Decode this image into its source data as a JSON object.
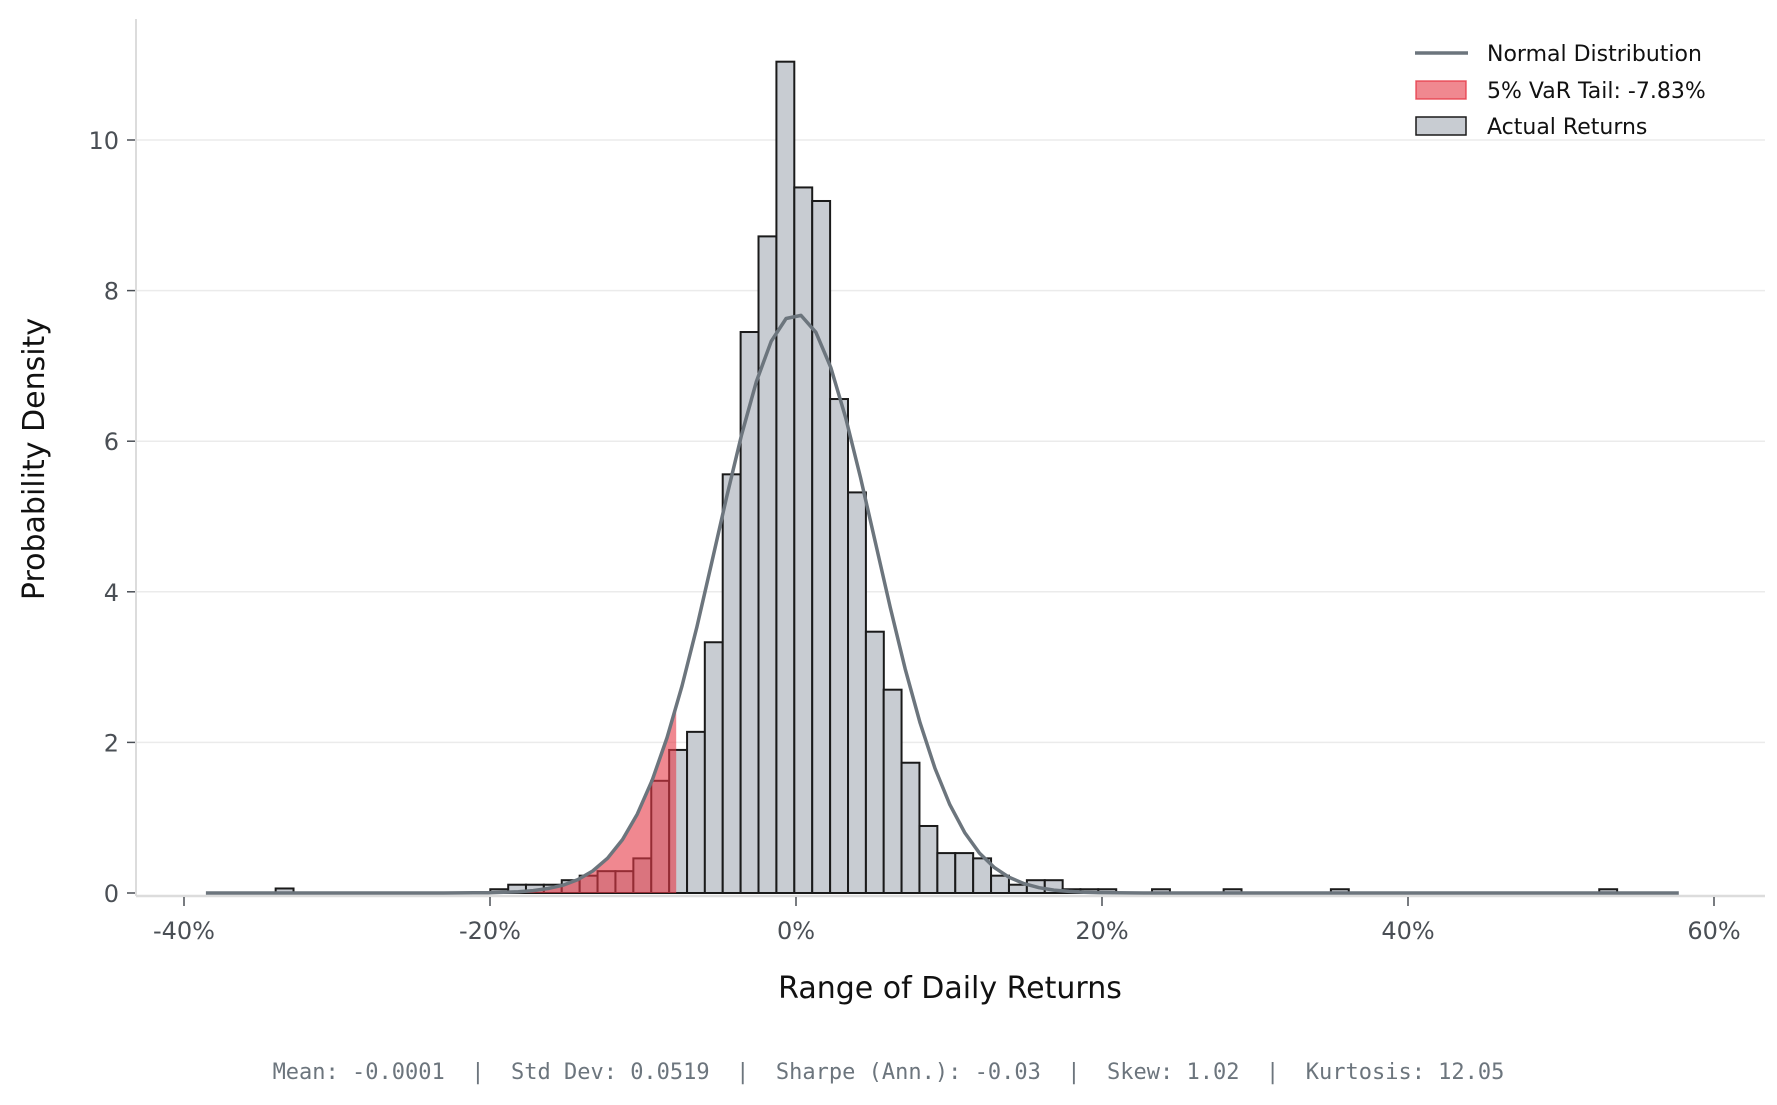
{
  "chart_data": {
    "type": "bar",
    "subtype": "histogram-with-normal-fit",
    "xlabel": "Range of Daily Returns",
    "ylabel": "Probability Density",
    "xlim": [
      -42,
      63
    ],
    "ylim": [
      0,
      11.4
    ],
    "x_ticks": [
      -40,
      -20,
      0,
      20,
      40,
      60
    ],
    "x_tick_labels": [
      "-40%",
      "-20%",
      "0%",
      "20%",
      "40%",
      "60%"
    ],
    "y_ticks": [
      0,
      2,
      4,
      6,
      8,
      10
    ],
    "y_tick_labels": [
      "0",
      "2",
      "4",
      "6",
      "8",
      "10"
    ],
    "grid": "horizontal",
    "legend_position": "top-right",
    "legend": [
      {
        "label": "Normal Distribution",
        "type": "line",
        "color": "#6c757d"
      },
      {
        "label": "5% VaR Tail: -7.83%",
        "type": "patch",
        "color": "#e63946"
      },
      {
        "label": "Actual Returns",
        "type": "patch",
        "color": "#c8ccd2"
      }
    ],
    "bin_width_pct": 1.169,
    "series": [
      {
        "name": "Actual Returns",
        "bins": [
          {
            "left": -34.01,
            "density": 0.06
          },
          {
            "left": -19.98,
            "density": 0.05
          },
          {
            "left": -18.81,
            "density": 0.11
          },
          {
            "left": -17.65,
            "density": 0.11
          },
          {
            "left": -16.48,
            "density": 0.11
          },
          {
            "left": -15.31,
            "density": 0.17
          },
          {
            "left": -14.14,
            "density": 0.23
          },
          {
            "left": -12.97,
            "density": 0.29
          },
          {
            "left": -11.8,
            "density": 0.29
          },
          {
            "left": -10.63,
            "density": 0.46
          },
          {
            "left": -9.46,
            "density": 1.49
          },
          {
            "left": -8.29,
            "density": 1.9
          },
          {
            "left": -7.12,
            "density": 2.14
          },
          {
            "left": -5.96,
            "density": 3.33
          },
          {
            "left": -4.79,
            "density": 5.56
          },
          {
            "left": -3.62,
            "density": 7.45
          },
          {
            "left": -2.45,
            "density": 8.72
          },
          {
            "left": -1.28,
            "density": 11.04
          },
          {
            "left": -0.11,
            "density": 9.37
          },
          {
            "left": 1.06,
            "density": 9.19
          },
          {
            "left": 2.23,
            "density": 6.56
          },
          {
            "left": 3.4,
            "density": 5.32
          },
          {
            "left": 4.57,
            "density": 3.47
          },
          {
            "left": 5.73,
            "density": 2.7
          },
          {
            "left": 6.9,
            "density": 1.73
          },
          {
            "left": 8.07,
            "density": 0.89
          },
          {
            "left": 9.24,
            "density": 0.53
          },
          {
            "left": 10.41,
            "density": 0.53
          },
          {
            "left": 11.58,
            "density": 0.46
          },
          {
            "left": 12.75,
            "density": 0.23
          },
          {
            "left": 13.92,
            "density": 0.11
          },
          {
            "left": 15.09,
            "density": 0.17
          },
          {
            "left": 16.26,
            "density": 0.17
          },
          {
            "left": 17.42,
            "density": 0.05
          },
          {
            "left": 18.59,
            "density": 0.05
          },
          {
            "left": 19.76,
            "density": 0.05
          },
          {
            "left": 23.27,
            "density": 0.05
          },
          {
            "left": 27.95,
            "density": 0.05
          },
          {
            "left": 34.96,
            "density": 0.05
          },
          {
            "left": 52.5,
            "density": 0.05
          }
        ]
      },
      {
        "name": "Normal Distribution",
        "mean": -0.0001,
        "std": 0.0519,
        "x_range_pct": [
          -38.57,
          57.7
        ]
      }
    ],
    "var_threshold_pct": -7.83,
    "colors": {
      "bar_fill": "#c8ccd2",
      "bar_edge": "#1a1a1a",
      "var_fill": "#e63946",
      "curve": "#6c757d",
      "grid": "#ebebeb",
      "spine": "#dcdcdc"
    }
  },
  "footer": {
    "mean": "Mean: -0.0001",
    "std": "Std Dev: 0.0519",
    "sharpe": "Sharpe (Ann.): -0.03",
    "skew": "Skew: 1.02",
    "kurtosis": "Kurtosis: 12.05",
    "separator": "  |  "
  }
}
